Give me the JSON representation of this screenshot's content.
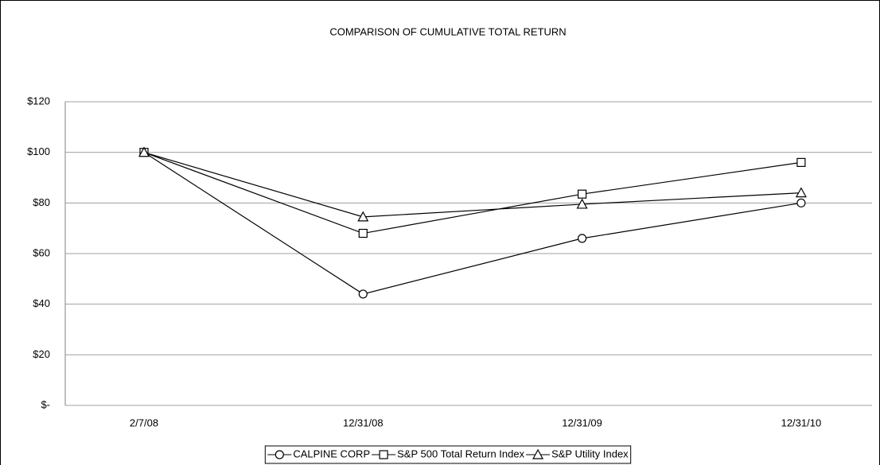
{
  "chart_data": {
    "type": "line",
    "title": "COMPARISON OF CUMULATIVE TOTAL RETURN",
    "categories": [
      "2/7/08",
      "12/31/08",
      "12/31/09",
      "12/31/10"
    ],
    "series": [
      {
        "name": "CALPINE CORP",
        "color": "#000000",
        "marker": "circle",
        "values": [
          100,
          44,
          66,
          80
        ]
      },
      {
        "name": "S&P 500 Total Return Index",
        "color": "#000000",
        "marker": "square",
        "values": [
          100,
          68,
          83.5,
          96
        ]
      },
      {
        "name": "S&P Utility Index",
        "color": "#000000",
        "marker": "triangle",
        "values": [
          100,
          74.5,
          79.5,
          84
        ]
      }
    ],
    "ylim": [
      0,
      120
    ],
    "yticks": [
      {
        "value": 0,
        "label": "$-"
      },
      {
        "value": 20,
        "label": "$20"
      },
      {
        "value": 40,
        "label": "$40"
      },
      {
        "value": 60,
        "label": "$60"
      },
      {
        "value": 80,
        "label": "$80"
      },
      {
        "value": 100,
        "label": "$100"
      },
      {
        "value": 120,
        "label": "$120"
      }
    ],
    "grid": true,
    "legend": "bottom"
  }
}
